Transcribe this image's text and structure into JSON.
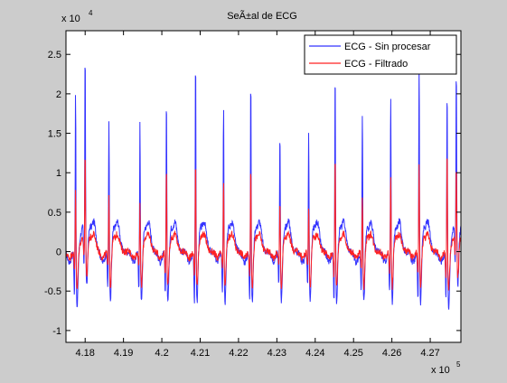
{
  "chart_data": {
    "type": "line",
    "title": "SeÃ±al de ECG",
    "xlabel": "",
    "ylabel": "",
    "x_scale_label": {
      "base": "x 10",
      "exponent": "5"
    },
    "y_scale_label": {
      "base": "x 10",
      "exponent": "4"
    },
    "xlim": [
      41750,
      41780
    ],
    "ylim": [
      -11500,
      28000
    ],
    "x_ticks": [
      41800,
      41900,
      42000,
      42100,
      42200,
      42300,
      42400,
      42500,
      42600,
      42700
    ],
    "x_tick_labels": [
      "4.18",
      "4.19",
      "4.2",
      "4.21",
      "4.22",
      "4.23",
      "4.24",
      "4.25",
      "4.26",
      "4.27"
    ],
    "x_range": [
      41750,
      42780
    ],
    "y_ticks": [
      -10000,
      -5000,
      0,
      5000,
      10000,
      15000,
      20000,
      25000
    ],
    "y_tick_labels": [
      "-1",
      "-0.5",
      "0",
      "0.5",
      "1",
      "1.5",
      "2",
      "2.5"
    ],
    "grid": false,
    "legend_position": "top-right",
    "background_color": "#cccccc",
    "plot_background": "#ffffff",
    "series": [
      {
        "name": "ECG - Sin procesar",
        "color": "#3333ff",
        "r_peak_x": [
          41775,
          41800,
          41862,
          41943,
          42012,
          42088,
          42161,
          42232,
          42308,
          42383,
          42452,
          42523,
          42597,
          42671,
          42744,
          42768
        ],
        "r_peak_y": [
          22000,
          23500,
          18000,
          17500,
          21000,
          25500,
          20000,
          23500,
          16500,
          16000,
          24000,
          19000,
          21000,
          25500,
          22000,
          21000
        ],
        "baseline_y": 0,
        "s_wave_y": -6500,
        "t_wave_y": 3800
      },
      {
        "name": "ECG - Filtrado",
        "color": "#ff2222",
        "r_peak_x": [
          41775,
          41800,
          41862,
          41943,
          42012,
          42088,
          42161,
          42232,
          42308,
          42383,
          42452,
          42523,
          42597,
          42671,
          42744,
          42768
        ],
        "r_peak_y": [
          9000,
          11500,
          8200,
          6500,
          11500,
          12500,
          9300,
          11500,
          7000,
          6500,
          13000,
          8000,
          10800,
          12000,
          14000,
          9500
        ],
        "baseline_y": 0,
        "s_wave_y": -4500,
        "t_wave_y": 2200
      }
    ]
  }
}
